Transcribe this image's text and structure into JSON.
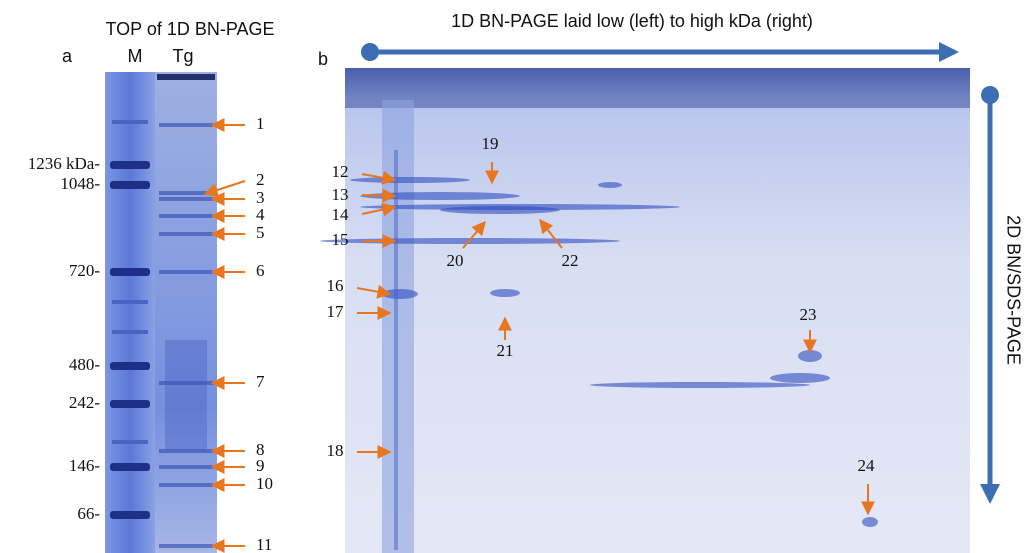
{
  "panel_a": {
    "letter": "a",
    "title": "TOP of 1D BN-PAGE",
    "lane_labels": [
      "M",
      "Tg"
    ],
    "marker_labels": [
      "1236 kDa-",
      "1048-",
      "720-",
      "480-",
      "242-",
      "146-",
      "66-"
    ],
    "band_labels": [
      "1",
      "2",
      "3",
      "4",
      "5",
      "6",
      "7",
      "8",
      "9",
      "10",
      "11"
    ]
  },
  "panel_b": {
    "letter": "b",
    "x_arrow_label": "1D BN-PAGE laid low (left) to high kDa (right)",
    "y_arrow_label": "2D BN/SDS-PAGE",
    "spot_labels": [
      "12",
      "13",
      "14",
      "15",
      "16",
      "17",
      "18",
      "19",
      "20",
      "21",
      "22",
      "23",
      "24"
    ]
  }
}
